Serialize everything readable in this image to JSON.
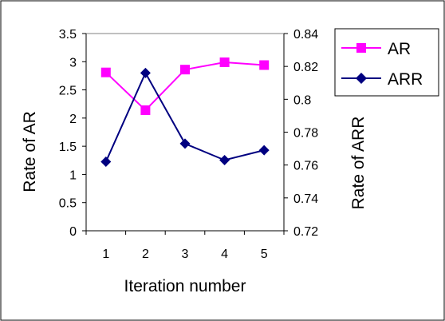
{
  "chart_data": {
    "type": "line",
    "categories": [
      "1",
      "2",
      "3",
      "4",
      "5"
    ],
    "xlabel": "Iteration number",
    "series": [
      {
        "name": "AR",
        "axis": "left",
        "color": "#ff00ff",
        "marker": "square",
        "values": [
          2.81,
          2.14,
          2.86,
          2.99,
          2.94
        ]
      },
      {
        "name": "ARR",
        "axis": "right",
        "color": "#000080",
        "marker": "diamond",
        "values": [
          0.762,
          0.816,
          0.773,
          0.763,
          0.769
        ]
      }
    ],
    "y_left": {
      "label": "Rate of AR",
      "ylim": [
        0,
        3.5
      ],
      "ticks": [
        "0",
        "0.5",
        "1",
        "1.5",
        "2",
        "2.5",
        "3",
        "3.5"
      ]
    },
    "y_right": {
      "label": "Rate of ARR",
      "ylim": [
        0.72,
        0.84
      ],
      "ticks": [
        "0.72",
        "0.74",
        "0.76",
        "0.78",
        "0.8",
        "0.82",
        "0.84"
      ]
    },
    "grid": false,
    "legend_position": "top-right"
  }
}
